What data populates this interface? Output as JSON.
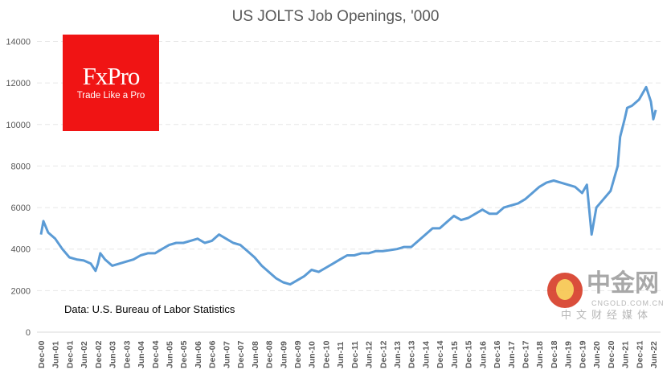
{
  "chart_data": {
    "type": "line",
    "title": "US JOLTS Job Openings, '000",
    "annotation": "Data: U.S. Bureau of Labor Statistics",
    "ylim": [
      0,
      14000
    ],
    "yticks": [
      0,
      2000,
      4000,
      6000,
      8000,
      10000,
      12000,
      14000
    ],
    "grid": true,
    "legend": "none",
    "line_color": "#5b9bd5",
    "xtick_labels": [
      "Dec-00",
      "Jun-01",
      "Dec-01",
      "Jun-02",
      "Dec-02",
      "Jun-03",
      "Dec-03",
      "Jun-04",
      "Dec-04",
      "Jun-05",
      "Dec-05",
      "Jun-06",
      "Dec-06",
      "Jun-07",
      "Dec-07",
      "Jun-08",
      "Dec-08",
      "Jun-09",
      "Dec-09",
      "Jun-10",
      "Dec-10",
      "Jun-11",
      "Dec-11",
      "Jun-12",
      "Dec-12",
      "Jun-13",
      "Dec-13",
      "Jun-14",
      "Dec-14",
      "Jun-15",
      "Dec-15",
      "Jun-16",
      "Dec-16",
      "Jun-17",
      "Dec-17",
      "Jun-18",
      "Dec-18",
      "Jun-19",
      "Dec-19",
      "Jun-20",
      "Dec-20",
      "Jun-21",
      "Dec-21",
      "Jun-22"
    ],
    "series": [
      {
        "x": [
          "2000-12",
          "2001-01",
          "2001-03",
          "2001-06",
          "2001-09",
          "2001-12",
          "2002-03",
          "2002-06",
          "2002-09",
          "2002-11",
          "2002-12",
          "2003-01",
          "2003-03",
          "2003-06",
          "2003-09",
          "2003-12",
          "2004-03",
          "2004-06",
          "2004-09",
          "2004-12",
          "2005-03",
          "2005-06",
          "2005-09",
          "2005-12",
          "2006-03",
          "2006-06",
          "2006-09",
          "2006-12",
          "2007-03",
          "2007-06",
          "2007-09",
          "2007-12",
          "2008-03",
          "2008-06",
          "2008-09",
          "2008-12",
          "2009-03",
          "2009-06",
          "2009-09",
          "2009-12",
          "2010-03",
          "2010-06",
          "2010-09",
          "2010-12",
          "2011-03",
          "2011-06",
          "2011-09",
          "2011-12",
          "2012-03",
          "2012-06",
          "2012-09",
          "2012-12",
          "2013-03",
          "2013-06",
          "2013-09",
          "2013-12",
          "2014-03",
          "2014-06",
          "2014-09",
          "2014-12",
          "2015-03",
          "2015-06",
          "2015-09",
          "2015-12",
          "2016-03",
          "2016-06",
          "2016-09",
          "2016-12",
          "2017-03",
          "2017-06",
          "2017-09",
          "2017-12",
          "2018-03",
          "2018-06",
          "2018-09",
          "2018-12",
          "2019-03",
          "2019-06",
          "2019-09",
          "2019-12",
          "2020-02",
          "2020-04",
          "2020-06",
          "2020-09",
          "2020-12",
          "2021-03",
          "2021-04",
          "2021-06",
          "2021-07",
          "2021-09",
          "2021-12",
          "2022-03",
          "2022-05",
          "2022-06",
          "2022-07"
        ],
        "values": [
          4700,
          5350,
          4800,
          4500,
          4000,
          3600,
          3500,
          3450,
          3300,
          2950,
          3300,
          3800,
          3500,
          3200,
          3300,
          3400,
          3500,
          3700,
          3800,
          3800,
          4000,
          4200,
          4300,
          4300,
          4400,
          4500,
          4300,
          4400,
          4700,
          4500,
          4300,
          4200,
          3900,
          3600,
          3200,
          2900,
          2600,
          2400,
          2300,
          2500,
          2700,
          3000,
          2900,
          3100,
          3300,
          3500,
          3700,
          3700,
          3800,
          3800,
          3900,
          3900,
          3950,
          4000,
          4100,
          4100,
          4400,
          4700,
          5000,
          5000,
          5300,
          5600,
          5400,
          5500,
          5700,
          5900,
          5700,
          5700,
          6000,
          6100,
          6200,
          6400,
          6700,
          7000,
          7200,
          7300,
          7200,
          7100,
          7000,
          6700,
          7100,
          4700,
          6000,
          6400,
          6800,
          8000,
          9400,
          10300,
          10800,
          10900,
          11200,
          11800,
          11100,
          10250,
          10700
        ]
      }
    ]
  }
}
